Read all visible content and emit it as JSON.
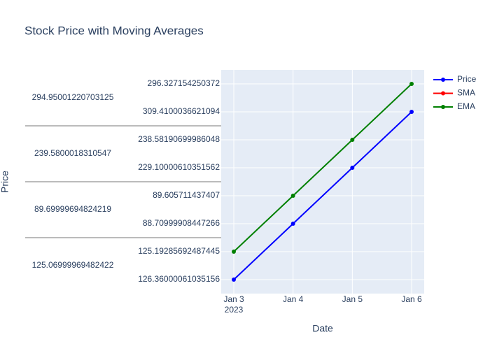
{
  "chart_data": {
    "type": "line",
    "title": "Stock Price with Moving Averages",
    "x_label": "Date",
    "y_label": "Price",
    "x": [
      "2023-01-03",
      "2023-01-04",
      "2023-01-05",
      "2023-01-06"
    ],
    "xlim": [
      "2023-01-02T18:54:00",
      "2023-01-06T05:06:00"
    ],
    "xticks": [
      {
        "value": "2023-01-03",
        "label": "Jan 3"
      },
      {
        "value": "2023-01-04",
        "label": "Jan 4"
      },
      {
        "value": "2023-01-05",
        "label": "Jan 5"
      },
      {
        "value": "2023-01-06",
        "label": "Jan 6"
      }
    ],
    "x_year_label": "2023",
    "y_groups": [
      {
        "label": "125.06999969482422",
        "categories": [
          126.36000061035156,
          125.19285692487445
        ]
      },
      {
        "label": "89.69999694824219",
        "categories": [
          88.70999908447266,
          89.605711437407
        ]
      },
      {
        "label": "239.5800018310547",
        "categories": [
          229.10000610351562,
          238.58190699986048
        ]
      },
      {
        "label": "294.95001220703125",
        "categories": [
          309.4100036621094,
          296.327154250372
        ]
      }
    ],
    "grid": true,
    "legend": "top-right",
    "series": [
      {
        "name": "Price",
        "color": "#0000ff",
        "values": [
          126.36000061035156,
          88.70999908447266,
          229.10000610351562,
          309.4100036621094
        ]
      },
      {
        "name": "SMA",
        "color": "#ff0000",
        "values": [
          null,
          null,
          null,
          null
        ]
      },
      {
        "name": "EMA",
        "color": "#008000",
        "values": [
          125.19285692487445,
          89.605711437407,
          238.58190699986048,
          296.327154250372
        ]
      }
    ]
  }
}
